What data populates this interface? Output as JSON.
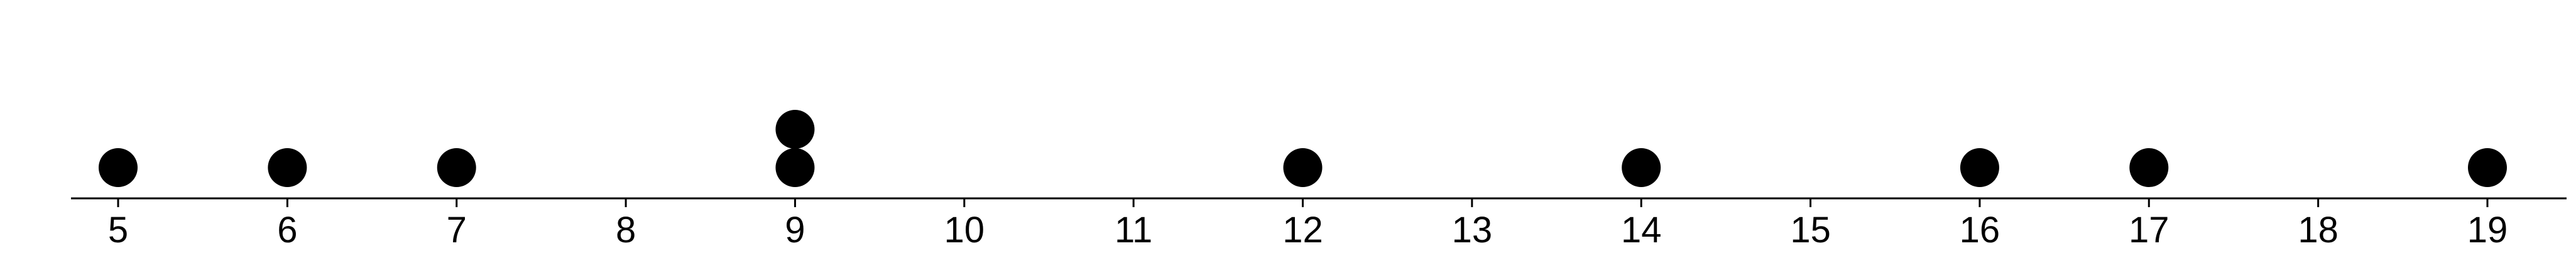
{
  "chart_data": {
    "type": "scatter",
    "subtype": "dot-plot",
    "title": "",
    "xlabel": "",
    "ylabel": "",
    "xlim": [
      5,
      19
    ],
    "ticks": [
      5,
      6,
      7,
      8,
      9,
      10,
      11,
      12,
      13,
      14,
      15,
      16,
      17,
      18,
      19
    ],
    "tick_labels": [
      "5",
      "6",
      "7",
      "8",
      "9",
      "10",
      "11",
      "12",
      "13",
      "14",
      "15",
      "16",
      "17",
      "18",
      "19"
    ],
    "values": [
      5,
      6,
      7,
      9,
      9,
      12,
      14,
      16,
      17,
      19
    ],
    "grid": false,
    "legend": "none",
    "dot_color": "#000000",
    "axis_color": "#000000"
  }
}
